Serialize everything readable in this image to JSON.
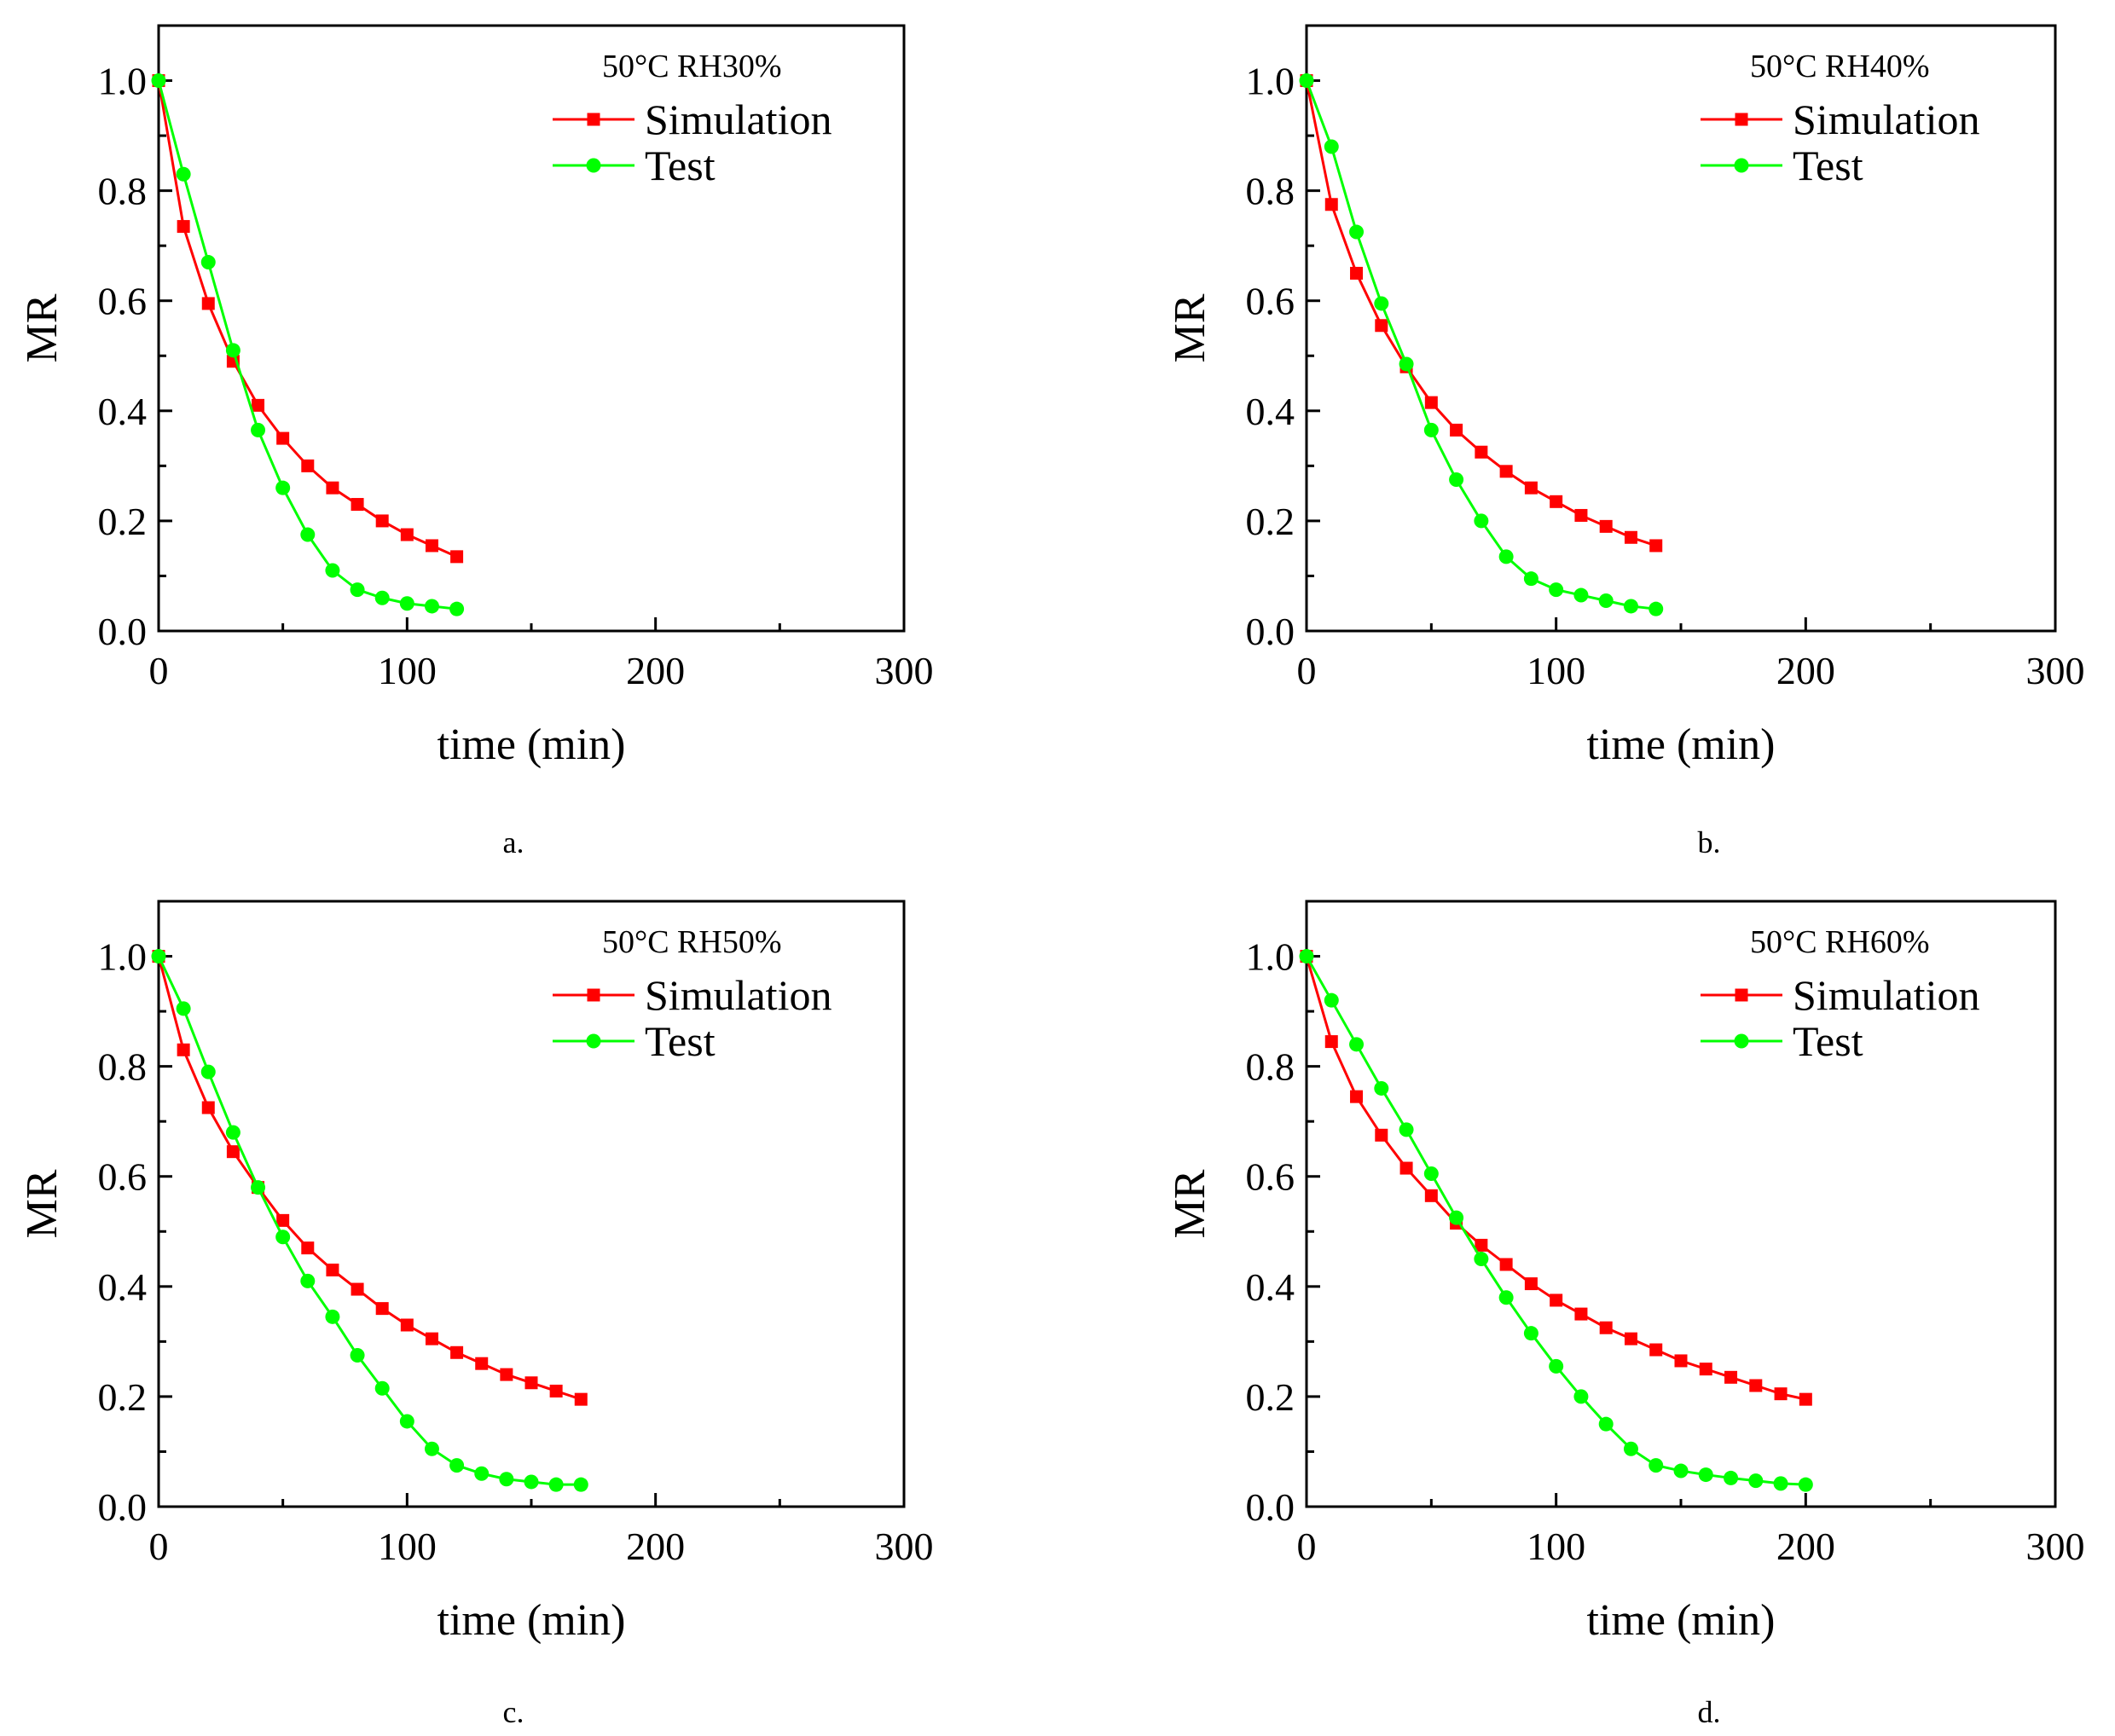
{
  "figure": {
    "colors": {
      "simulation": "#ff0000",
      "test": "#00ff00",
      "axis": "#000000"
    }
  },
  "chart_data": [
    {
      "type": "line",
      "title": "50°C RH30%",
      "caption": "a.",
      "xlabel": "time (min)",
      "ylabel": "MR",
      "xlim": [
        0,
        300
      ],
      "ylim": [
        0.0,
        1.1
      ],
      "xticks": [
        0,
        100,
        200,
        300
      ],
      "xtick_labels": [
        "0",
        "100",
        "200",
        "300"
      ],
      "yticks": [
        0.0,
        0.2,
        0.4,
        0.6,
        0.8,
        1.0
      ],
      "ytick_labels": [
        "0.0",
        "0.2",
        "0.4",
        "0.6",
        "0.8",
        "1.0"
      ],
      "legend": {
        "position": "top-right",
        "entries": [
          "Simulation",
          "Test"
        ]
      },
      "series": [
        {
          "name": "Simulation",
          "marker": "square",
          "color": "#ff0000",
          "x": [
            0,
            10,
            20,
            30,
            40,
            50,
            60,
            70,
            80,
            90,
            100,
            110,
            120
          ],
          "y": [
            1.0,
            0.735,
            0.595,
            0.49,
            0.41,
            0.35,
            0.3,
            0.26,
            0.23,
            0.2,
            0.175,
            0.155,
            0.135
          ]
        },
        {
          "name": "Test",
          "marker": "circle",
          "color": "#00ff00",
          "x": [
            0,
            10,
            20,
            30,
            40,
            50,
            60,
            70,
            80,
            90,
            100,
            110,
            120
          ],
          "y": [
            1.0,
            0.83,
            0.67,
            0.51,
            0.365,
            0.26,
            0.175,
            0.11,
            0.075,
            0.06,
            0.05,
            0.045,
            0.04
          ]
        }
      ]
    },
    {
      "type": "line",
      "title": "50°C RH40%",
      "caption": "b.",
      "xlabel": "time (min)",
      "ylabel": "MR",
      "xlim": [
        0,
        300
      ],
      "ylim": [
        0.0,
        1.1
      ],
      "xticks": [
        0,
        100,
        200,
        300
      ],
      "xtick_labels": [
        "0",
        "100",
        "200",
        "300"
      ],
      "yticks": [
        0.0,
        0.2,
        0.4,
        0.6,
        0.8,
        1.0
      ],
      "ytick_labels": [
        "0.0",
        "0.2",
        "0.4",
        "0.6",
        "0.8",
        "1.0"
      ],
      "legend": {
        "position": "top-right",
        "entries": [
          "Simulation",
          "Test"
        ]
      },
      "series": [
        {
          "name": "Simulation",
          "marker": "square",
          "color": "#ff0000",
          "x": [
            0,
            10,
            20,
            30,
            40,
            50,
            60,
            70,
            80,
            90,
            100,
            110,
            120,
            130,
            140
          ],
          "y": [
            1.0,
            0.775,
            0.65,
            0.555,
            0.48,
            0.415,
            0.365,
            0.325,
            0.29,
            0.26,
            0.235,
            0.21,
            0.19,
            0.17,
            0.155
          ]
        },
        {
          "name": "Test",
          "marker": "circle",
          "color": "#00ff00",
          "x": [
            0,
            10,
            20,
            30,
            40,
            50,
            60,
            70,
            80,
            90,
            100,
            110,
            120,
            130,
            140
          ],
          "y": [
            1.0,
            0.88,
            0.725,
            0.595,
            0.485,
            0.365,
            0.275,
            0.2,
            0.135,
            0.095,
            0.075,
            0.065,
            0.055,
            0.045,
            0.04
          ]
        }
      ]
    },
    {
      "type": "line",
      "title": "50°C RH50%",
      "caption": "c.",
      "xlabel": "time (min)",
      "ylabel": "MR",
      "xlim": [
        0,
        300
      ],
      "ylim": [
        0.0,
        1.1
      ],
      "xticks": [
        0,
        100,
        200,
        300
      ],
      "xtick_labels": [
        "0",
        "100",
        "200",
        "300"
      ],
      "yticks": [
        0.0,
        0.2,
        0.4,
        0.6,
        0.8,
        1.0
      ],
      "ytick_labels": [
        "0.0",
        "0.2",
        "0.4",
        "0.6",
        "0.8",
        "1.0"
      ],
      "legend": {
        "position": "top-right",
        "entries": [
          "Simulation",
          "Test"
        ]
      },
      "series": [
        {
          "name": "Simulation",
          "marker": "square",
          "color": "#ff0000",
          "x": [
            0,
            10,
            20,
            30,
            40,
            50,
            60,
            70,
            80,
            90,
            100,
            110,
            120,
            130,
            140,
            150,
            160,
            170
          ],
          "y": [
            1.0,
            0.83,
            0.725,
            0.645,
            0.58,
            0.52,
            0.47,
            0.43,
            0.395,
            0.36,
            0.33,
            0.305,
            0.28,
            0.26,
            0.24,
            0.225,
            0.21,
            0.195
          ]
        },
        {
          "name": "Test",
          "marker": "circle",
          "color": "#00ff00",
          "x": [
            0,
            10,
            20,
            30,
            40,
            50,
            60,
            70,
            80,
            90,
            100,
            110,
            120,
            130,
            140,
            150,
            160,
            170
          ],
          "y": [
            1.0,
            0.905,
            0.79,
            0.68,
            0.58,
            0.49,
            0.41,
            0.345,
            0.275,
            0.215,
            0.155,
            0.105,
            0.075,
            0.06,
            0.05,
            0.045,
            0.04,
            0.04
          ]
        }
      ]
    },
    {
      "type": "line",
      "title": "50°C RH60%",
      "caption": "d.",
      "xlabel": "time (min)",
      "ylabel": "MR",
      "xlim": [
        0,
        300
      ],
      "ylim": [
        0.0,
        1.1
      ],
      "xticks": [
        0,
        100,
        200,
        300
      ],
      "xtick_labels": [
        "0",
        "100",
        "200",
        "300"
      ],
      "yticks": [
        0.0,
        0.2,
        0.4,
        0.6,
        0.8,
        1.0
      ],
      "ytick_labels": [
        "0.0",
        "0.2",
        "0.4",
        "0.6",
        "0.8",
        "1.0"
      ],
      "legend": {
        "position": "top-right",
        "entries": [
          "Simulation",
          "Test"
        ]
      },
      "series": [
        {
          "name": "Simulation",
          "marker": "square",
          "color": "#ff0000",
          "x": [
            0,
            10,
            20,
            30,
            40,
            50,
            60,
            70,
            80,
            90,
            100,
            110,
            120,
            130,
            140,
            150,
            160,
            170,
            180,
            190,
            200
          ],
          "y": [
            1.0,
            0.845,
            0.745,
            0.675,
            0.615,
            0.565,
            0.515,
            0.475,
            0.44,
            0.405,
            0.375,
            0.35,
            0.325,
            0.305,
            0.285,
            0.265,
            0.25,
            0.235,
            0.22,
            0.205,
            0.195
          ]
        },
        {
          "name": "Test",
          "marker": "circle",
          "color": "#00ff00",
          "x": [
            0,
            10,
            20,
            30,
            40,
            50,
            60,
            70,
            80,
            90,
            100,
            110,
            120,
            130,
            140,
            150,
            160,
            170,
            180,
            190,
            200
          ],
          "y": [
            1.0,
            0.92,
            0.84,
            0.76,
            0.685,
            0.605,
            0.525,
            0.45,
            0.38,
            0.315,
            0.255,
            0.2,
            0.15,
            0.105,
            0.075,
            0.065,
            0.058,
            0.052,
            0.047,
            0.042,
            0.04
          ]
        }
      ]
    }
  ]
}
